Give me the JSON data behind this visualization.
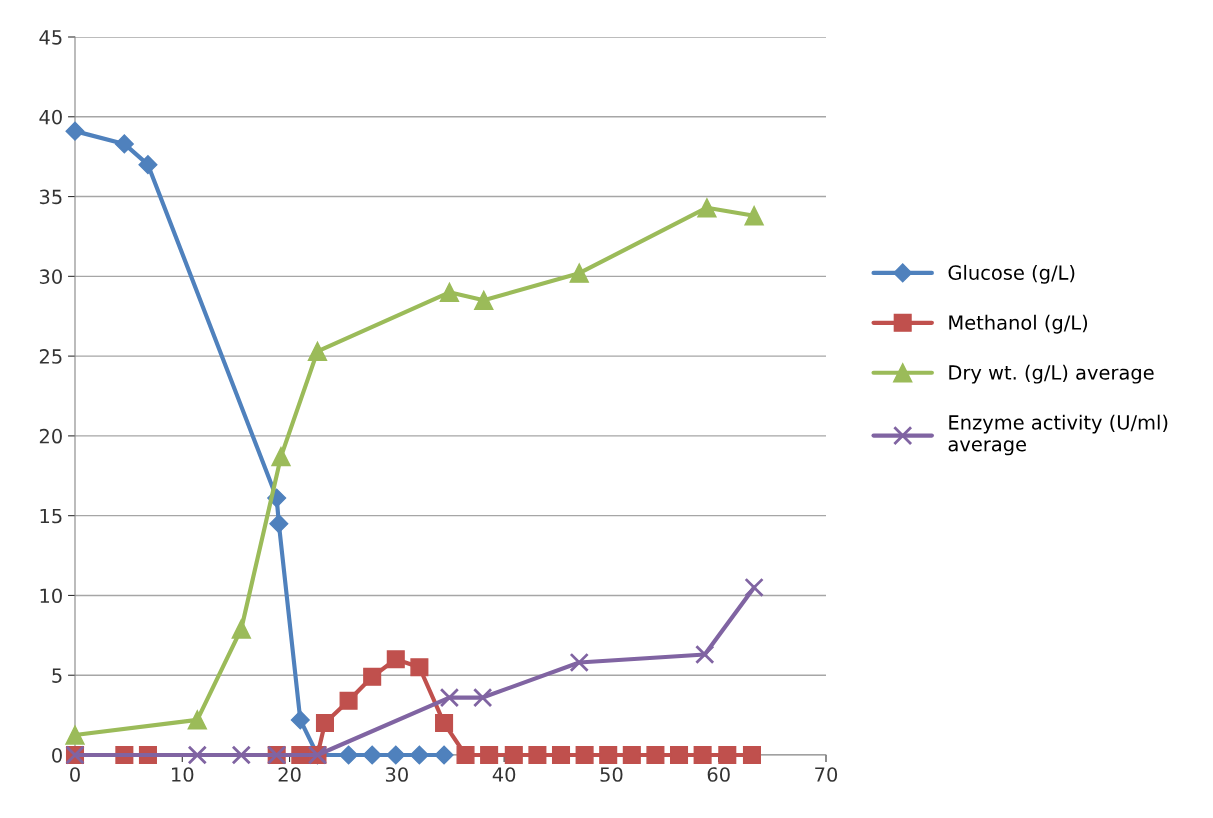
{
  "chart_data": {
    "type": "line",
    "xlim": [
      0,
      70
    ],
    "xticks": [
      0,
      10,
      20,
      30,
      40,
      50,
      60,
      70
    ],
    "ylim": [
      0,
      45
    ],
    "yticks": [
      0,
      5,
      10,
      15,
      20,
      25,
      30,
      35,
      40,
      45
    ],
    "grid": "y",
    "legend": "right",
    "series": [
      {
        "name": "Glucose (g/L)",
        "color": "#4f81bd",
        "marker": "diamond",
        "x": [
          0,
          4.6,
          6.8,
          18.8,
          19.0,
          21.0,
          22.6,
          25.5,
          27.7,
          29.9,
          32.1,
          34.4
        ],
        "values": [
          39.1,
          38.3,
          37.0,
          16.1,
          14.5,
          2.2,
          0,
          0,
          0,
          0,
          0,
          0
        ]
      },
      {
        "name": "Methanol (g/L)",
        "color": "#c0504d",
        "marker": "square",
        "x": [
          0,
          4.6,
          6.8,
          18.8,
          21.0,
          22.6,
          23.3,
          25.5,
          27.7,
          29.9,
          32.1,
          34.4,
          36.4,
          38.6,
          40.9,
          43.1,
          45.3,
          47.5,
          49.7,
          51.9,
          54.1,
          56.3,
          58.5,
          60.8,
          63.1
        ],
        "values": [
          0,
          0,
          0,
          0,
          0,
          0,
          2.0,
          3.4,
          4.9,
          6.0,
          5.5,
          2.0,
          0,
          0,
          0,
          0,
          0,
          0,
          0,
          0,
          0,
          0,
          0,
          0,
          0
        ]
      },
      {
        "name": "Dry wt. (g/L) average",
        "color": "#9bbb59",
        "marker": "triangle",
        "x": [
          0,
          11.4,
          15.5,
          19.2,
          22.6,
          34.9,
          38.1,
          47.0,
          58.9,
          63.3
        ],
        "values": [
          1.25,
          2.2,
          7.9,
          18.7,
          25.3,
          29.0,
          28.5,
          30.2,
          34.3,
          33.8
        ]
      },
      {
        "name": "Enzyme activity (U/ml)\naverage",
        "color": "#8064a2",
        "marker": "cross",
        "x": [
          0,
          11.4,
          15.5,
          18.8,
          22.6,
          34.9,
          38.0,
          47.0,
          58.7,
          63.3
        ],
        "values": [
          0,
          0,
          0,
          0,
          0,
          3.6,
          3.6,
          5.8,
          6.3,
          10.5
        ]
      }
    ]
  }
}
